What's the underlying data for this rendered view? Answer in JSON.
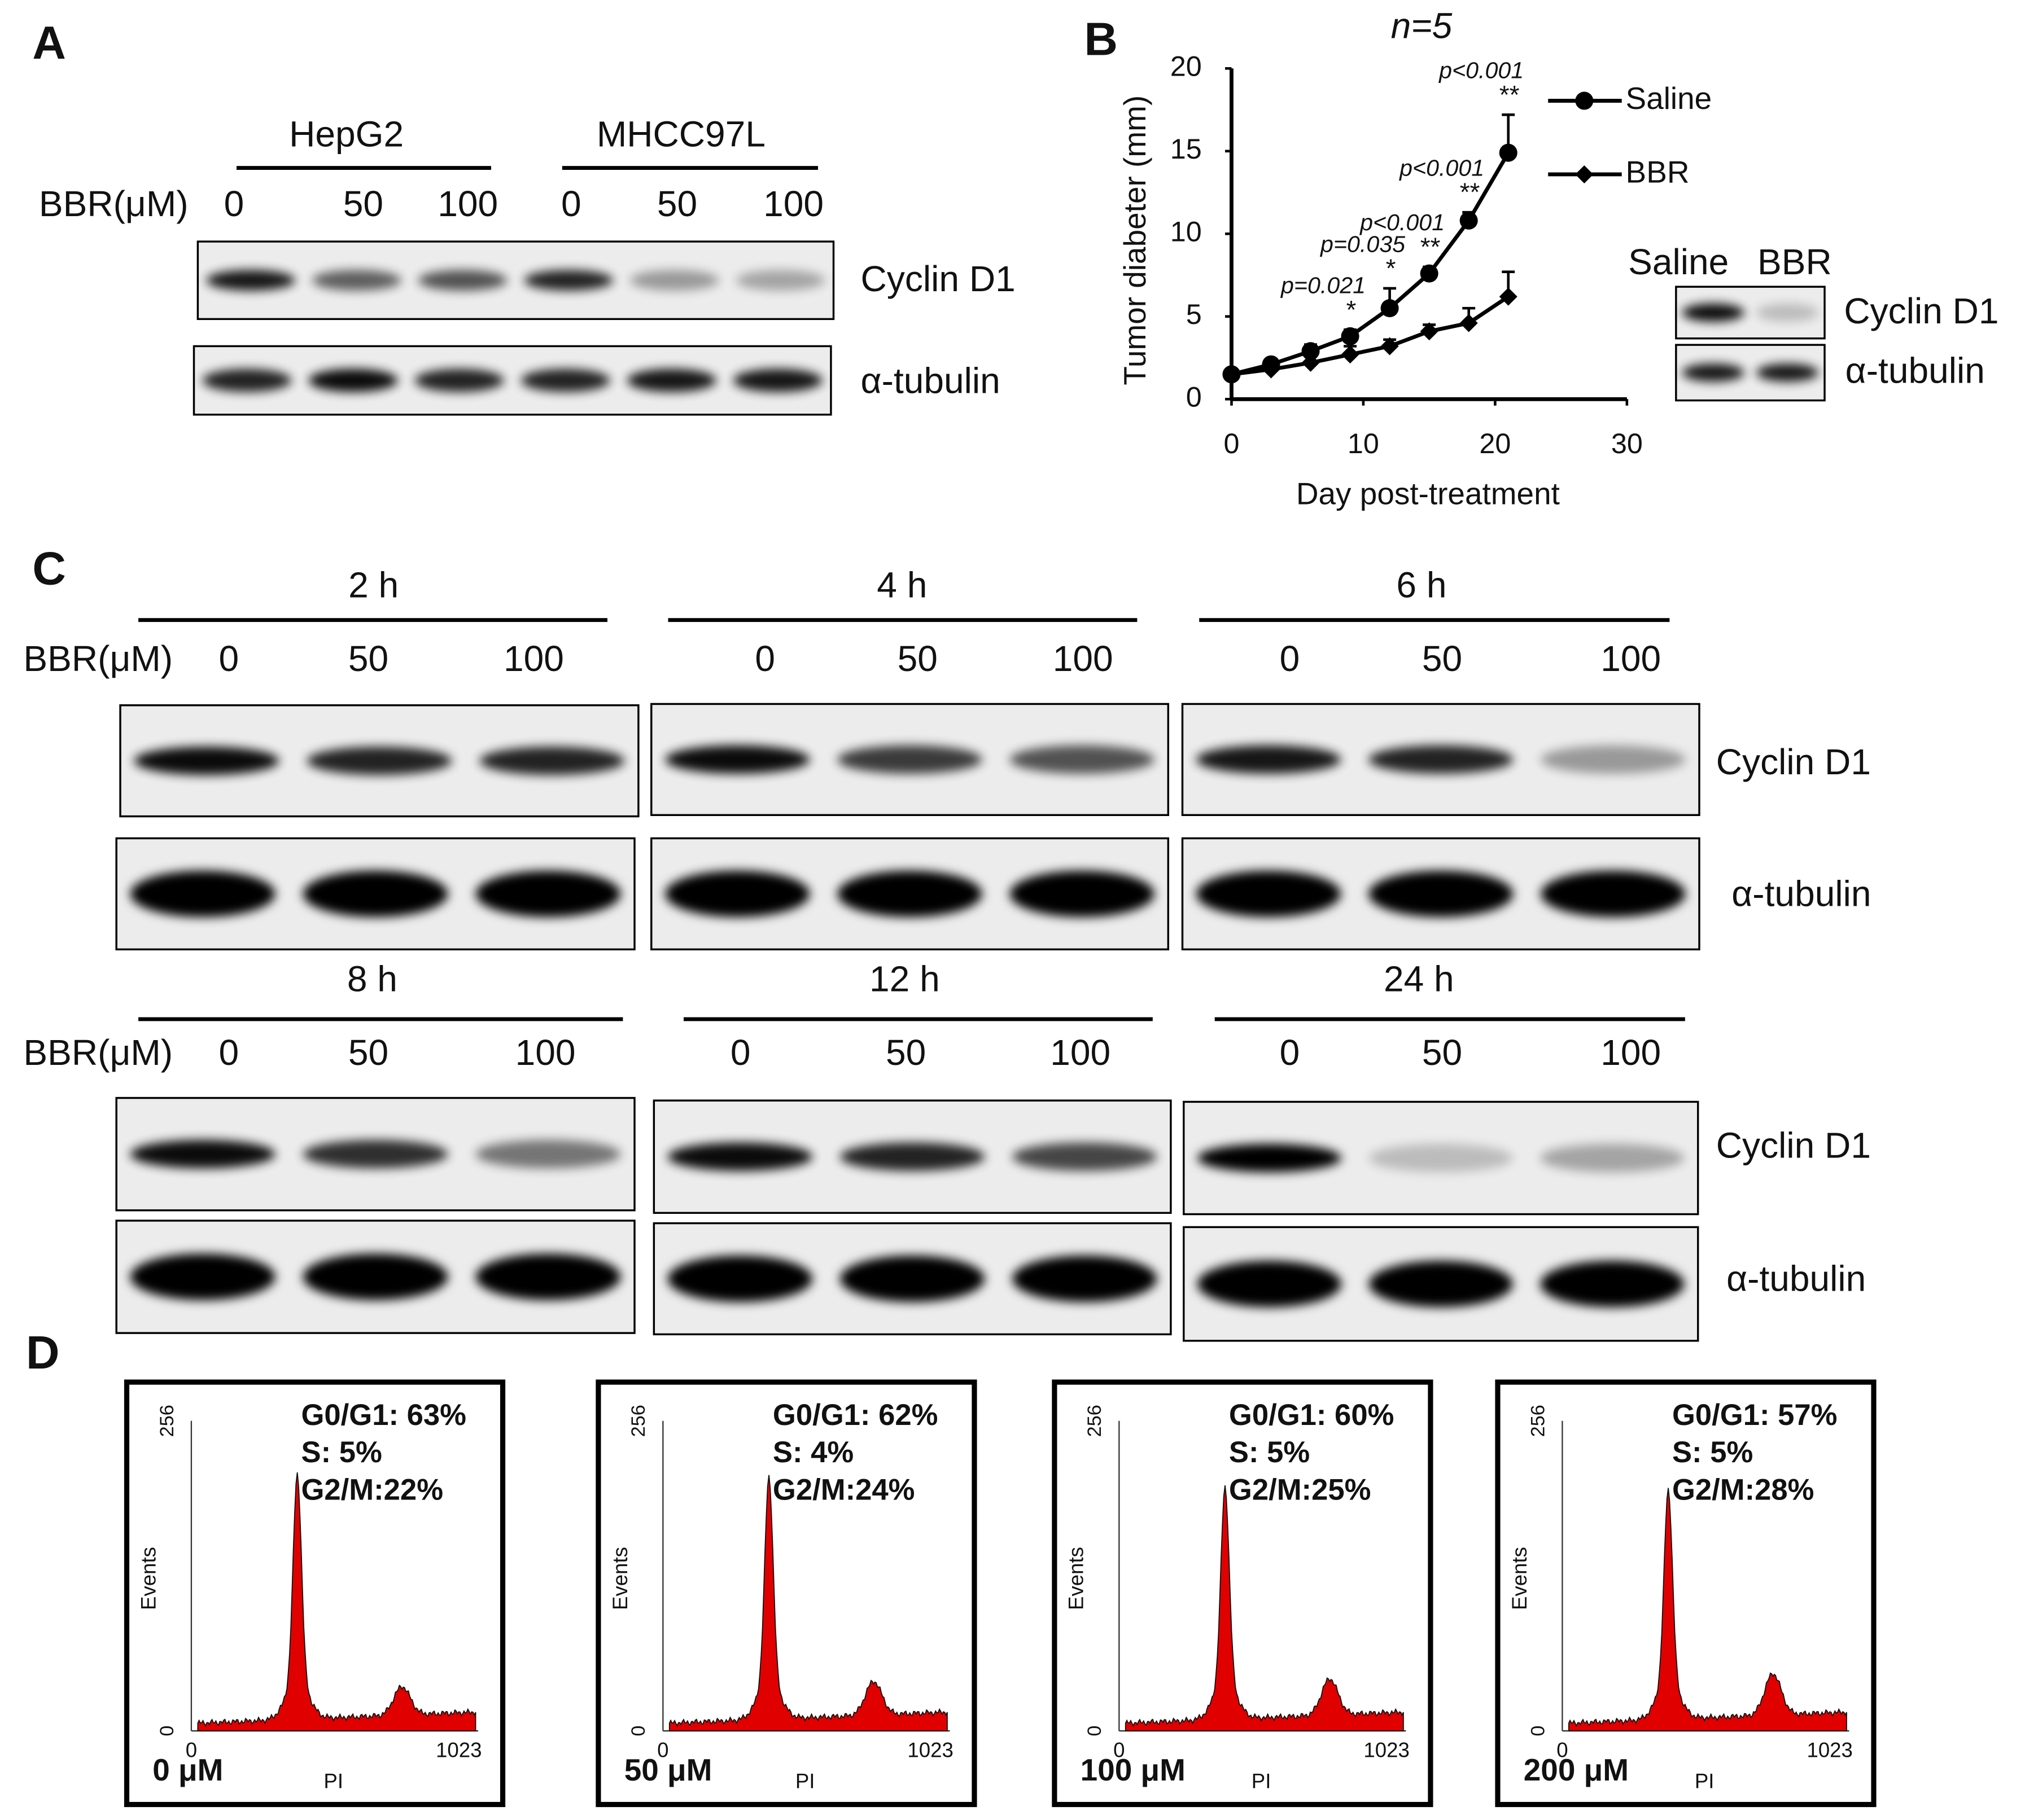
{
  "panel_a": {
    "letter": "A",
    "dose_label": "BBR(μM)",
    "groups": [
      {
        "name": "HepG2",
        "doses": [
          0,
          50,
          100
        ]
      },
      {
        "name": "MHCC97L",
        "doses": [
          0,
          50,
          100
        ]
      }
    ],
    "blots": [
      "Cyclin D1",
      "α-tubulin"
    ]
  },
  "panel_b": {
    "letter": "B",
    "blot_groups": [
      "Saline",
      "BBR"
    ],
    "blots": [
      "Cyclin D1",
      "α-tubulin"
    ]
  },
  "chart_data": {
    "type": "line",
    "title": "n=5",
    "x_label": "Day post-treatment",
    "y_label": "Tumor diabeter (mm)",
    "x": [
      0,
      3,
      6,
      9,
      12,
      15,
      18,
      21
    ],
    "series": [
      {
        "name": "Saline",
        "color": "#000000",
        "marker": "circle",
        "values": [
          1.5,
          2.1,
          2.9,
          3.8,
          5.5,
          7.6,
          10.8,
          14.9
        ],
        "errors": [
          0.3,
          0.3,
          0.4,
          0.4,
          1.2,
          0.4,
          0.5,
          2.3
        ]
      },
      {
        "name": "BBR",
        "color": "#000000",
        "marker": "diamond",
        "values": [
          1.5,
          1.8,
          2.2,
          2.7,
          3.2,
          4.1,
          4.6,
          6.2
        ],
        "errors": [
          0.3,
          0.3,
          0.4,
          0.5,
          0.4,
          0.4,
          0.9,
          1.5
        ]
      }
    ],
    "xlim": [
      0,
      30
    ],
    "xticks": [
      0,
      10,
      20,
      30
    ],
    "ylim": [
      0,
      20
    ],
    "yticks": [
      0,
      5,
      10,
      15,
      20
    ],
    "annotations": [
      {
        "x": 9,
        "label": "p=0.021",
        "sig": "*"
      },
      {
        "x": 12,
        "label": "p=0.035",
        "sig": "*"
      },
      {
        "x": 15,
        "label": "p<0.001",
        "sig": "**"
      },
      {
        "x": 18,
        "label": "p<0.001",
        "sig": "**"
      },
      {
        "x": 21,
        "label": "p<0.001",
        "sig": "**"
      }
    ]
  },
  "panel_c": {
    "letter": "C",
    "rows": [
      {
        "dose_label": "BBR(μM)",
        "blots": [
          "Cyclin D1",
          "α-tubulin"
        ],
        "groups": [
          {
            "time": "2 h",
            "doses": [
              0,
              50,
              100
            ]
          },
          {
            "time": "4 h",
            "doses": [
              0,
              50,
              100
            ]
          },
          {
            "time": "6 h",
            "doses": [
              0,
              50,
              100
            ]
          }
        ]
      },
      {
        "dose_label": "BBR(μM)",
        "blots": [
          "Cyclin D1",
          "α-tubulin"
        ],
        "groups": [
          {
            "time": "8 h",
            "doses": [
              0,
              50,
              100
            ]
          },
          {
            "time": "12 h",
            "doses": [
              0,
              50,
              100
            ]
          },
          {
            "time": "24 h",
            "doses": [
              0,
              50,
              100
            ]
          }
        ]
      }
    ]
  },
  "panel_d": {
    "letter": "D",
    "panels": [
      {
        "label": "0 μM",
        "stats": [
          "G0/G1: 63%",
          "S: 5%",
          "G2/M:22%"
        ],
        "y_label": "Events",
        "x_label": "PI",
        "y_ticks": [
          256,
          0
        ],
        "x_ticks": [
          0,
          1023
        ]
      },
      {
        "label": "50 μM",
        "stats": [
          "G0/G1: 62%",
          "S: 4%",
          "G2/M:24%"
        ],
        "y_label": "Events",
        "x_label": "PI",
        "y_ticks": [
          256,
          0
        ],
        "x_ticks": [
          0,
          1023
        ]
      },
      {
        "label": "100 μM",
        "stats": [
          "G0/G1: 60%",
          "S: 5%",
          "G2/M:25%"
        ],
        "y_label": "Events",
        "x_label": "PI",
        "y_ticks": [
          256,
          0
        ],
        "x_ticks": [
          0,
          1023
        ]
      },
      {
        "label": "200 μM",
        "stats": [
          "G0/G1: 57%",
          "S: 5%",
          "G2/M:28%"
        ],
        "y_label": "Events",
        "x_label": "PI",
        "y_ticks": [
          256,
          0
        ],
        "x_ticks": [
          0,
          1023
        ]
      }
    ]
  }
}
